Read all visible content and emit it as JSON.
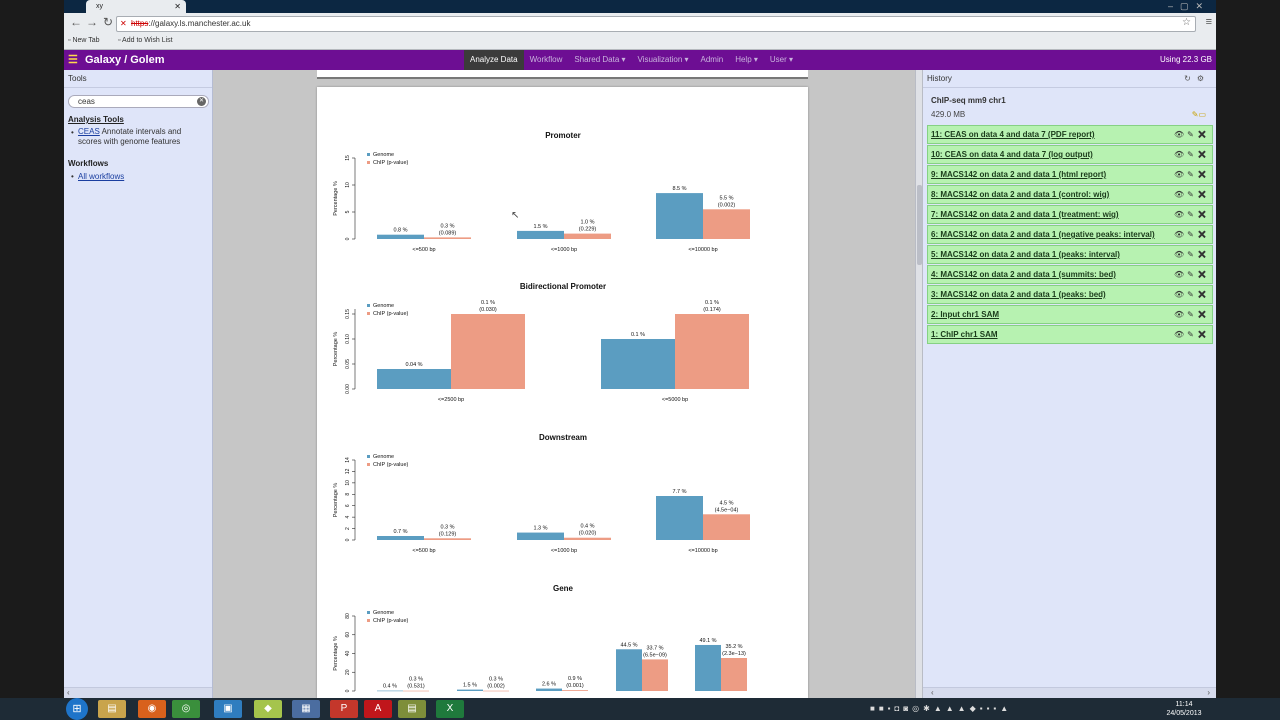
{
  "browser": {
    "tab_title": "xy",
    "url_scheme": "https",
    "url_rest": "://galaxy.ls.manchester.ac.uk",
    "bookmarks": [
      "New Tab",
      "Add to Wish List"
    ]
  },
  "header": {
    "brand": "Galaxy / Golem",
    "nav": [
      "Analyze Data",
      "Workflow",
      "Shared Data ▾",
      "Visualization ▾",
      "Admin",
      "Help ▾",
      "User ▾"
    ],
    "usage": "Using 22.3 GB"
  },
  "tools_panel": {
    "title": "Tools",
    "search_value": "ceas",
    "section": "Analysis Tools",
    "tool_link": "CEAS",
    "tool_desc": "Annotate intervals and scores with genome features",
    "workflows_title": "Workflows",
    "workflows_link": "All workflows"
  },
  "history_panel": {
    "title": "History",
    "name": "ChIP-seq mm9 chr1",
    "size": "429.0 MB",
    "datasets": [
      "11: CEAS on data 4 and data 7 (PDF report)",
      "10: CEAS on data 4 and data 7 (log output)",
      "9: MACS142 on data 2 and data 1 (html report)",
      "8: MACS142 on data 2 and data 1 (control: wig)",
      "7: MACS142 on data 2 and data 1 (treatment: wig)",
      "6: MACS142 on data 2 and data 1 (negative peaks: interval)",
      "5: MACS142 on data 2 and data 1 (peaks: interval)",
      "4: MACS142 on data 2 and data 1 (summits: bed)",
      "3: MACS142 on data 2 and data 1 (peaks: bed)",
      "2: Input chr1 SAM",
      "1: ChIP chr1 SAM"
    ]
  },
  "taskbar": {
    "time": "11:14",
    "date": "24/05/2013"
  },
  "colors": {
    "genome": "#5b9dc1",
    "chip": "#ed9c84",
    "header_purple": "#6d0e93",
    "dataset_green": "#b7f2b1"
  },
  "chart_data": [
    {
      "type": "bar",
      "title": "Promoter",
      "ylabel": "Percentage %",
      "ylim": [
        0,
        15
      ],
      "yticks": [
        0,
        5,
        10,
        15
      ],
      "legend": [
        "Genome",
        "ChIP (p-value)"
      ],
      "categories": [
        "<=500 bp",
        "<=1000 bp",
        "<=10000 bp"
      ],
      "series": [
        {
          "name": "Genome",
          "values": [
            0.8,
            1.5,
            8.5
          ],
          "labels": [
            "0.8 %",
            "1.5 %",
            "8.5 %"
          ]
        },
        {
          "name": "ChIP (p-value)",
          "values": [
            0.3,
            1.0,
            5.5
          ],
          "labels": [
            "0.3 %",
            "1.0 %",
            "5.5 %"
          ],
          "pvalues": [
            "(0.089)",
            "(0.229)",
            "(0.002)"
          ]
        }
      ]
    },
    {
      "type": "bar",
      "title": "Bidirectional Promoter",
      "ylabel": "Percentage %",
      "ylim": [
        0,
        0.16
      ],
      "yticks": [
        "0.00",
        "0.05",
        "0.10",
        "0.15"
      ],
      "legend": [
        "Genome",
        "ChIP (p-value)"
      ],
      "categories": [
        "<=2500 bp",
        "<=5000 bp"
      ],
      "series": [
        {
          "name": "Genome",
          "values": [
            0.04,
            0.1
          ],
          "labels": [
            "0.04 %",
            "0.1 %"
          ]
        },
        {
          "name": "ChIP (p-value)",
          "values": [
            0.15,
            0.15
          ],
          "labels": [
            "0.1 %",
            "0.1 %"
          ],
          "pvalues": [
            "(0.030)",
            "(0.174)"
          ]
        }
      ]
    },
    {
      "type": "bar",
      "title": "Downstream",
      "ylabel": "Percentage %",
      "ylim": [
        0,
        14
      ],
      "yticks": [
        0,
        2,
        4,
        6,
        8,
        10,
        12,
        14
      ],
      "legend": [
        "Genome",
        "ChIP (p-value)"
      ],
      "categories": [
        "<=500 bp",
        "<=1000 bp",
        "<=10000 bp"
      ],
      "series": [
        {
          "name": "Genome",
          "values": [
            0.7,
            1.3,
            7.7
          ],
          "labels": [
            "0.7 %",
            "1.3 %",
            "7.7 %"
          ]
        },
        {
          "name": "ChIP (p-value)",
          "values": [
            0.3,
            0.4,
            4.5
          ],
          "labels": [
            "0.3 %",
            "0.4 %",
            "4.5 %"
          ],
          "pvalues": [
            "(0.129)",
            "(0.020)",
            "(4.5e−04)"
          ]
        }
      ]
    },
    {
      "type": "bar",
      "title": "Gene",
      "ylabel": "Percentage %",
      "ylim": [
        0,
        80
      ],
      "yticks": [
        0,
        20,
        40,
        60,
        80
      ],
      "legend": [
        "Genome",
        "ChIP (p-value)"
      ],
      "categories": [
        "",
        "",
        "",
        "",
        ""
      ],
      "series": [
        {
          "name": "Genome",
          "values": [
            0.4,
            1.5,
            2.6,
            44.5,
            49.1
          ],
          "labels": [
            "0.4 %",
            "1.5 %",
            "2.6 %",
            "44.5 %",
            "49.1 %"
          ]
        },
        {
          "name": "ChIP (p-value)",
          "values": [
            0.3,
            0.3,
            0.9,
            33.7,
            35.2
          ],
          "labels": [
            "0.3 %",
            "0.3 %",
            "0.9 %",
            "33.7 %",
            "35.2 %"
          ],
          "pvalues": [
            "(0.531)",
            "(0.002)",
            "(0.001)",
            "(6.5e−09)",
            "(2.3e−13)"
          ]
        }
      ]
    }
  ]
}
